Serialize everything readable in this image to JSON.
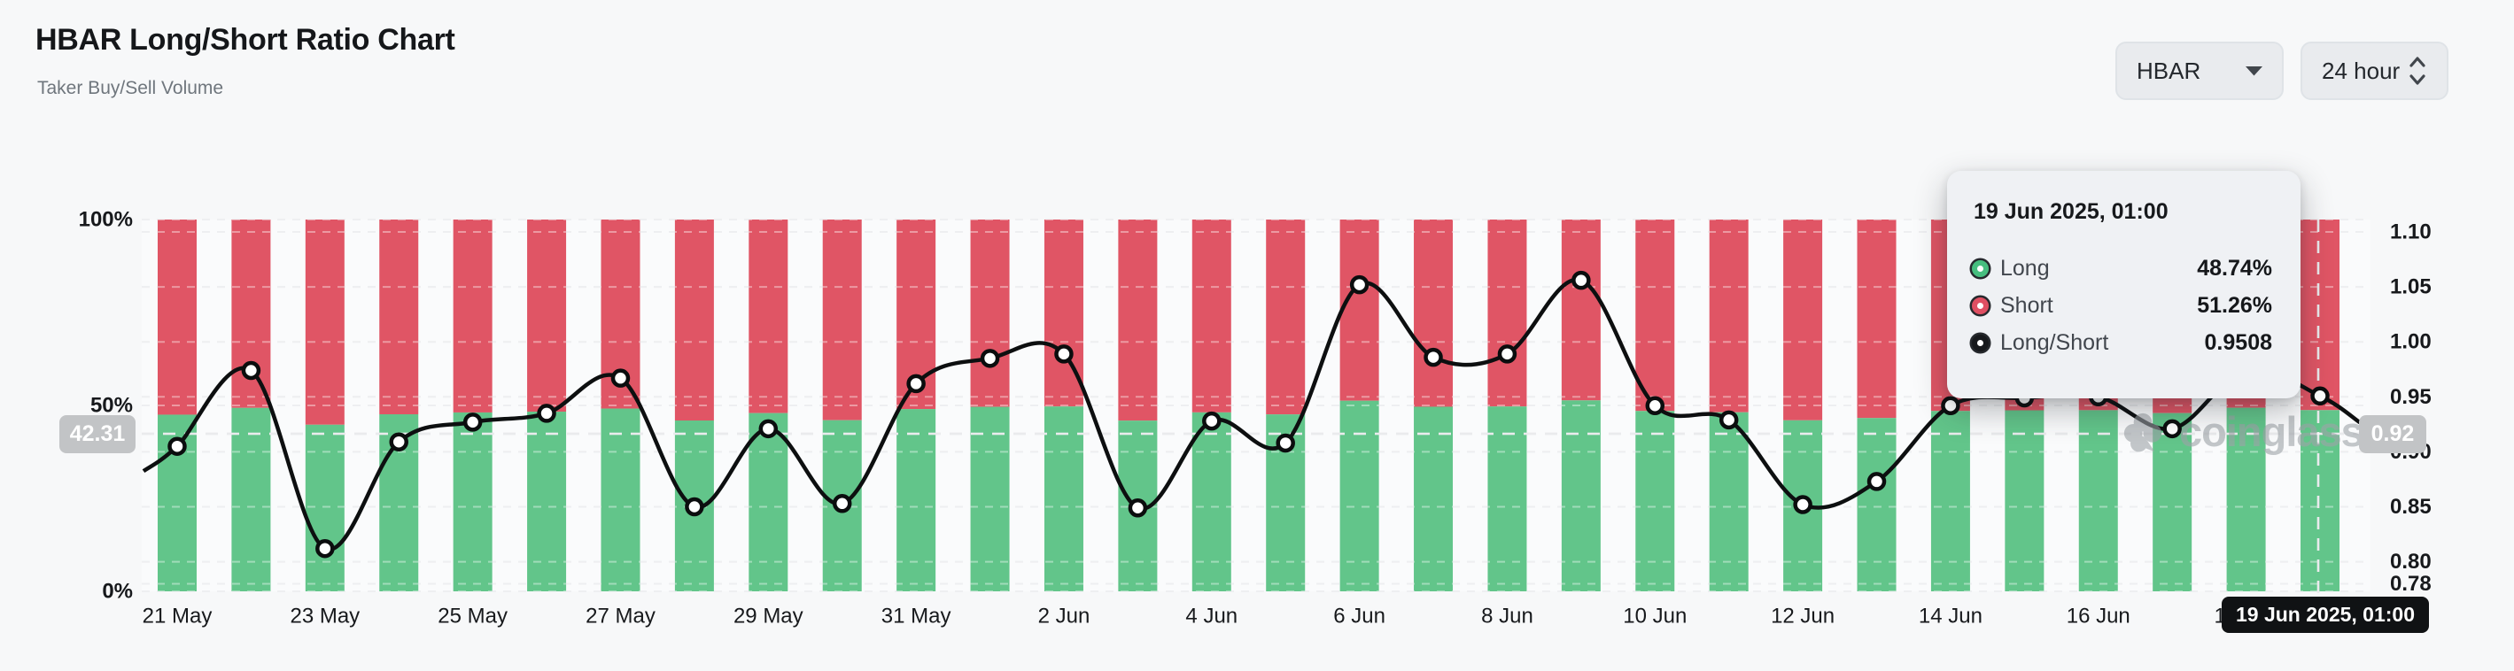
{
  "header": {
    "title": "HBAR Long/Short Ratio Chart",
    "subtitle": "Taker Buy/Sell Volume"
  },
  "controls": {
    "symbol": "HBAR",
    "interval": "24 hour"
  },
  "watermark": {
    "text": "coinglass"
  },
  "crosshair": {
    "left_badge": "42.31",
    "right_badge": "0.92",
    "bottom_badge": "19 Jun 2025, 01:00"
  },
  "tooltip": {
    "title": "19 Jun 2025, 01:00",
    "rows": [
      {
        "label": "Long",
        "value": "48.74%",
        "color": "#46be7f"
      },
      {
        "label": "Short",
        "value": "51.26%",
        "color": "#df4f62"
      },
      {
        "label": "Long/Short",
        "value": "0.9508",
        "color": "#17191c"
      }
    ]
  },
  "chart_data": {
    "type": "stacked-bar+line",
    "title": "HBAR Long/Short Ratio Chart",
    "categories": [
      "21 May",
      "22 May",
      "23 May",
      "24 May",
      "25 May",
      "26 May",
      "27 May",
      "28 May",
      "29 May",
      "30 May",
      "31 May",
      "1 Jun",
      "2 Jun",
      "3 Jun",
      "4 Jun",
      "5 Jun",
      "6 Jun",
      "7 Jun",
      "8 Jun",
      "9 Jun",
      "10 Jun",
      "11 Jun",
      "12 Jun",
      "13 Jun",
      "14 Jun",
      "15 Jun",
      "16 Jun",
      "17 Jun",
      "18 Jun",
      "19 Jun"
    ],
    "series": [
      {
        "name": "Long",
        "type": "bar",
        "stack": "volume",
        "unit": "%",
        "color": "#62c58a",
        "values": [
          47.51,
          49.34,
          44.81,
          47.62,
          48.11,
          48.32,
          49.16,
          45.95,
          47.94,
          46.03,
          49.03,
          49.62,
          49.72,
          45.92,
          48.13,
          47.59,
          51.27,
          49.65,
          49.72,
          51.36,
          48.51,
          48.16,
          46.0,
          46.61,
          48.51,
          48.69,
          48.72,
          47.94,
          49.37,
          48.74
        ]
      },
      {
        "name": "Short",
        "type": "bar",
        "stack": "volume",
        "unit": "%",
        "color": "#e05565",
        "values": [
          52.49,
          50.66,
          55.19,
          52.38,
          51.89,
          51.68,
          50.84,
          54.05,
          52.06,
          53.97,
          50.97,
          50.38,
          50.28,
          54.08,
          51.87,
          52.41,
          48.73,
          50.35,
          50.28,
          48.64,
          51.49,
          51.84,
          54.0,
          53.39,
          51.49,
          51.31,
          51.28,
          52.06,
          50.63,
          51.26
        ]
      },
      {
        "name": "Long/Short",
        "type": "line",
        "axis": "right",
        "color": "#0d0f10",
        "values": [
          0.905,
          0.974,
          0.812,
          0.909,
          0.927,
          0.935,
          0.967,
          0.85,
          0.921,
          0.853,
          0.962,
          0.985,
          0.989,
          0.849,
          0.928,
          0.908,
          1.052,
          0.986,
          0.989,
          1.056,
          0.942,
          0.929,
          0.852,
          0.873,
          0.942,
          0.949,
          0.95,
          0.921,
          0.975,
          0.9508
        ]
      }
    ],
    "left_axis": {
      "ticks": [
        "100%",
        "50%",
        "0%"
      ],
      "range": [
        0,
        100
      ]
    },
    "right_axis": {
      "ticks": [
        "1.10",
        "1.05",
        "1.00",
        "0.95",
        "0.90",
        "0.85",
        "0.80",
        "0.78"
      ],
      "range": [
        0.78,
        1.112
      ]
    },
    "x_axis": {
      "tick_every": 2,
      "labels": [
        "21 May",
        "23 May",
        "25 May",
        "27 May",
        "29 May",
        "31 May",
        "2 Jun",
        "4 Jun",
        "6 Jun",
        "8 Jun",
        "10 Jun",
        "12 Jun",
        "14 Jun",
        "16 Jun",
        "18 Jun"
      ]
    },
    "grid": "dashed-horizontal",
    "legend_position": "none",
    "crosshair": {
      "y_left": 42.31,
      "y_right": 0.92,
      "x_category": "19 Jun"
    }
  }
}
